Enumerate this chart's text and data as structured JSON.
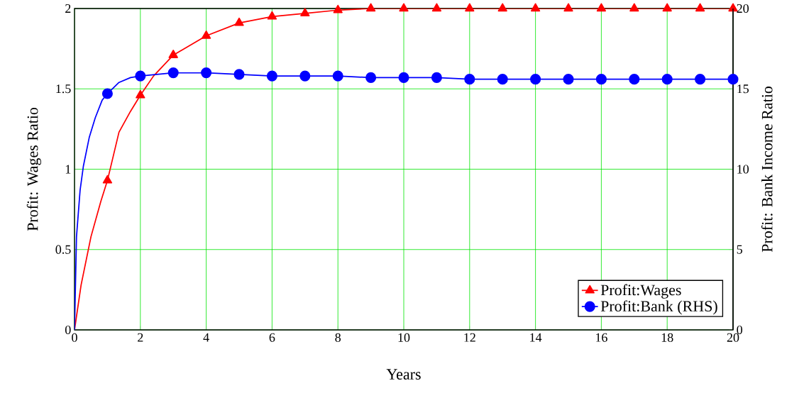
{
  "chart_data": {
    "type": "line",
    "xlabel": "Years",
    "ylabel": "Profit: Wages Ratio",
    "y2label": "Profit: Bank Income Ratio",
    "xlim": [
      0,
      20
    ],
    "xticks": [
      0,
      2,
      4,
      6,
      8,
      10,
      12,
      14,
      16,
      18,
      20
    ],
    "ylim": [
      0,
      2
    ],
    "yticks": [
      0,
      0.5,
      1,
      1.5,
      2
    ],
    "y2lim": [
      0,
      20
    ],
    "y2ticks": [
      0,
      5,
      10,
      15,
      20
    ],
    "grid": true,
    "legend": "bottom right",
    "series": [
      {
        "name": "Profit:Wages",
        "color": "#ff0000",
        "marker": "triangle",
        "x": [
          0,
          0.2,
          0.5,
          0.8,
          1,
          1.35,
          1.7,
          2,
          2.4,
          3,
          4,
          5,
          6,
          7,
          8,
          9,
          10,
          11,
          12,
          13,
          14,
          15,
          16,
          17,
          18,
          19,
          20
        ],
        "values": [
          0,
          0.28,
          0.58,
          0.8,
          0.93,
          1.23,
          1.36,
          1.46,
          1.58,
          1.71,
          1.83,
          1.91,
          1.95,
          1.97,
          1.99,
          2.0,
          2.0,
          2.0,
          2.0,
          2.0,
          2.0,
          2.0,
          2.0,
          2.0,
          2.0,
          2.0,
          2.0
        ]
      },
      {
        "name": "Profit:Bank (RHS)",
        "color": "#0000ff",
        "marker": "circle",
        "axis": "y2",
        "x": [
          0,
          0.06,
          0.17,
          0.27,
          0.45,
          0.63,
          0.84,
          1,
          1.35,
          1.7,
          2,
          3,
          4,
          5,
          6,
          7,
          8,
          9,
          10,
          11,
          12,
          13,
          14,
          15,
          16,
          17,
          18,
          19,
          20
        ],
        "values": [
          0,
          5.8,
          8.7,
          10.2,
          12.0,
          13.2,
          14.3,
          14.7,
          15.4,
          15.7,
          15.8,
          16.0,
          16.0,
          15.9,
          15.8,
          15.8,
          15.8,
          15.7,
          15.7,
          15.7,
          15.6,
          15.6,
          15.6,
          15.6,
          15.6,
          15.6,
          15.6,
          15.6,
          15.6
        ]
      }
    ]
  }
}
